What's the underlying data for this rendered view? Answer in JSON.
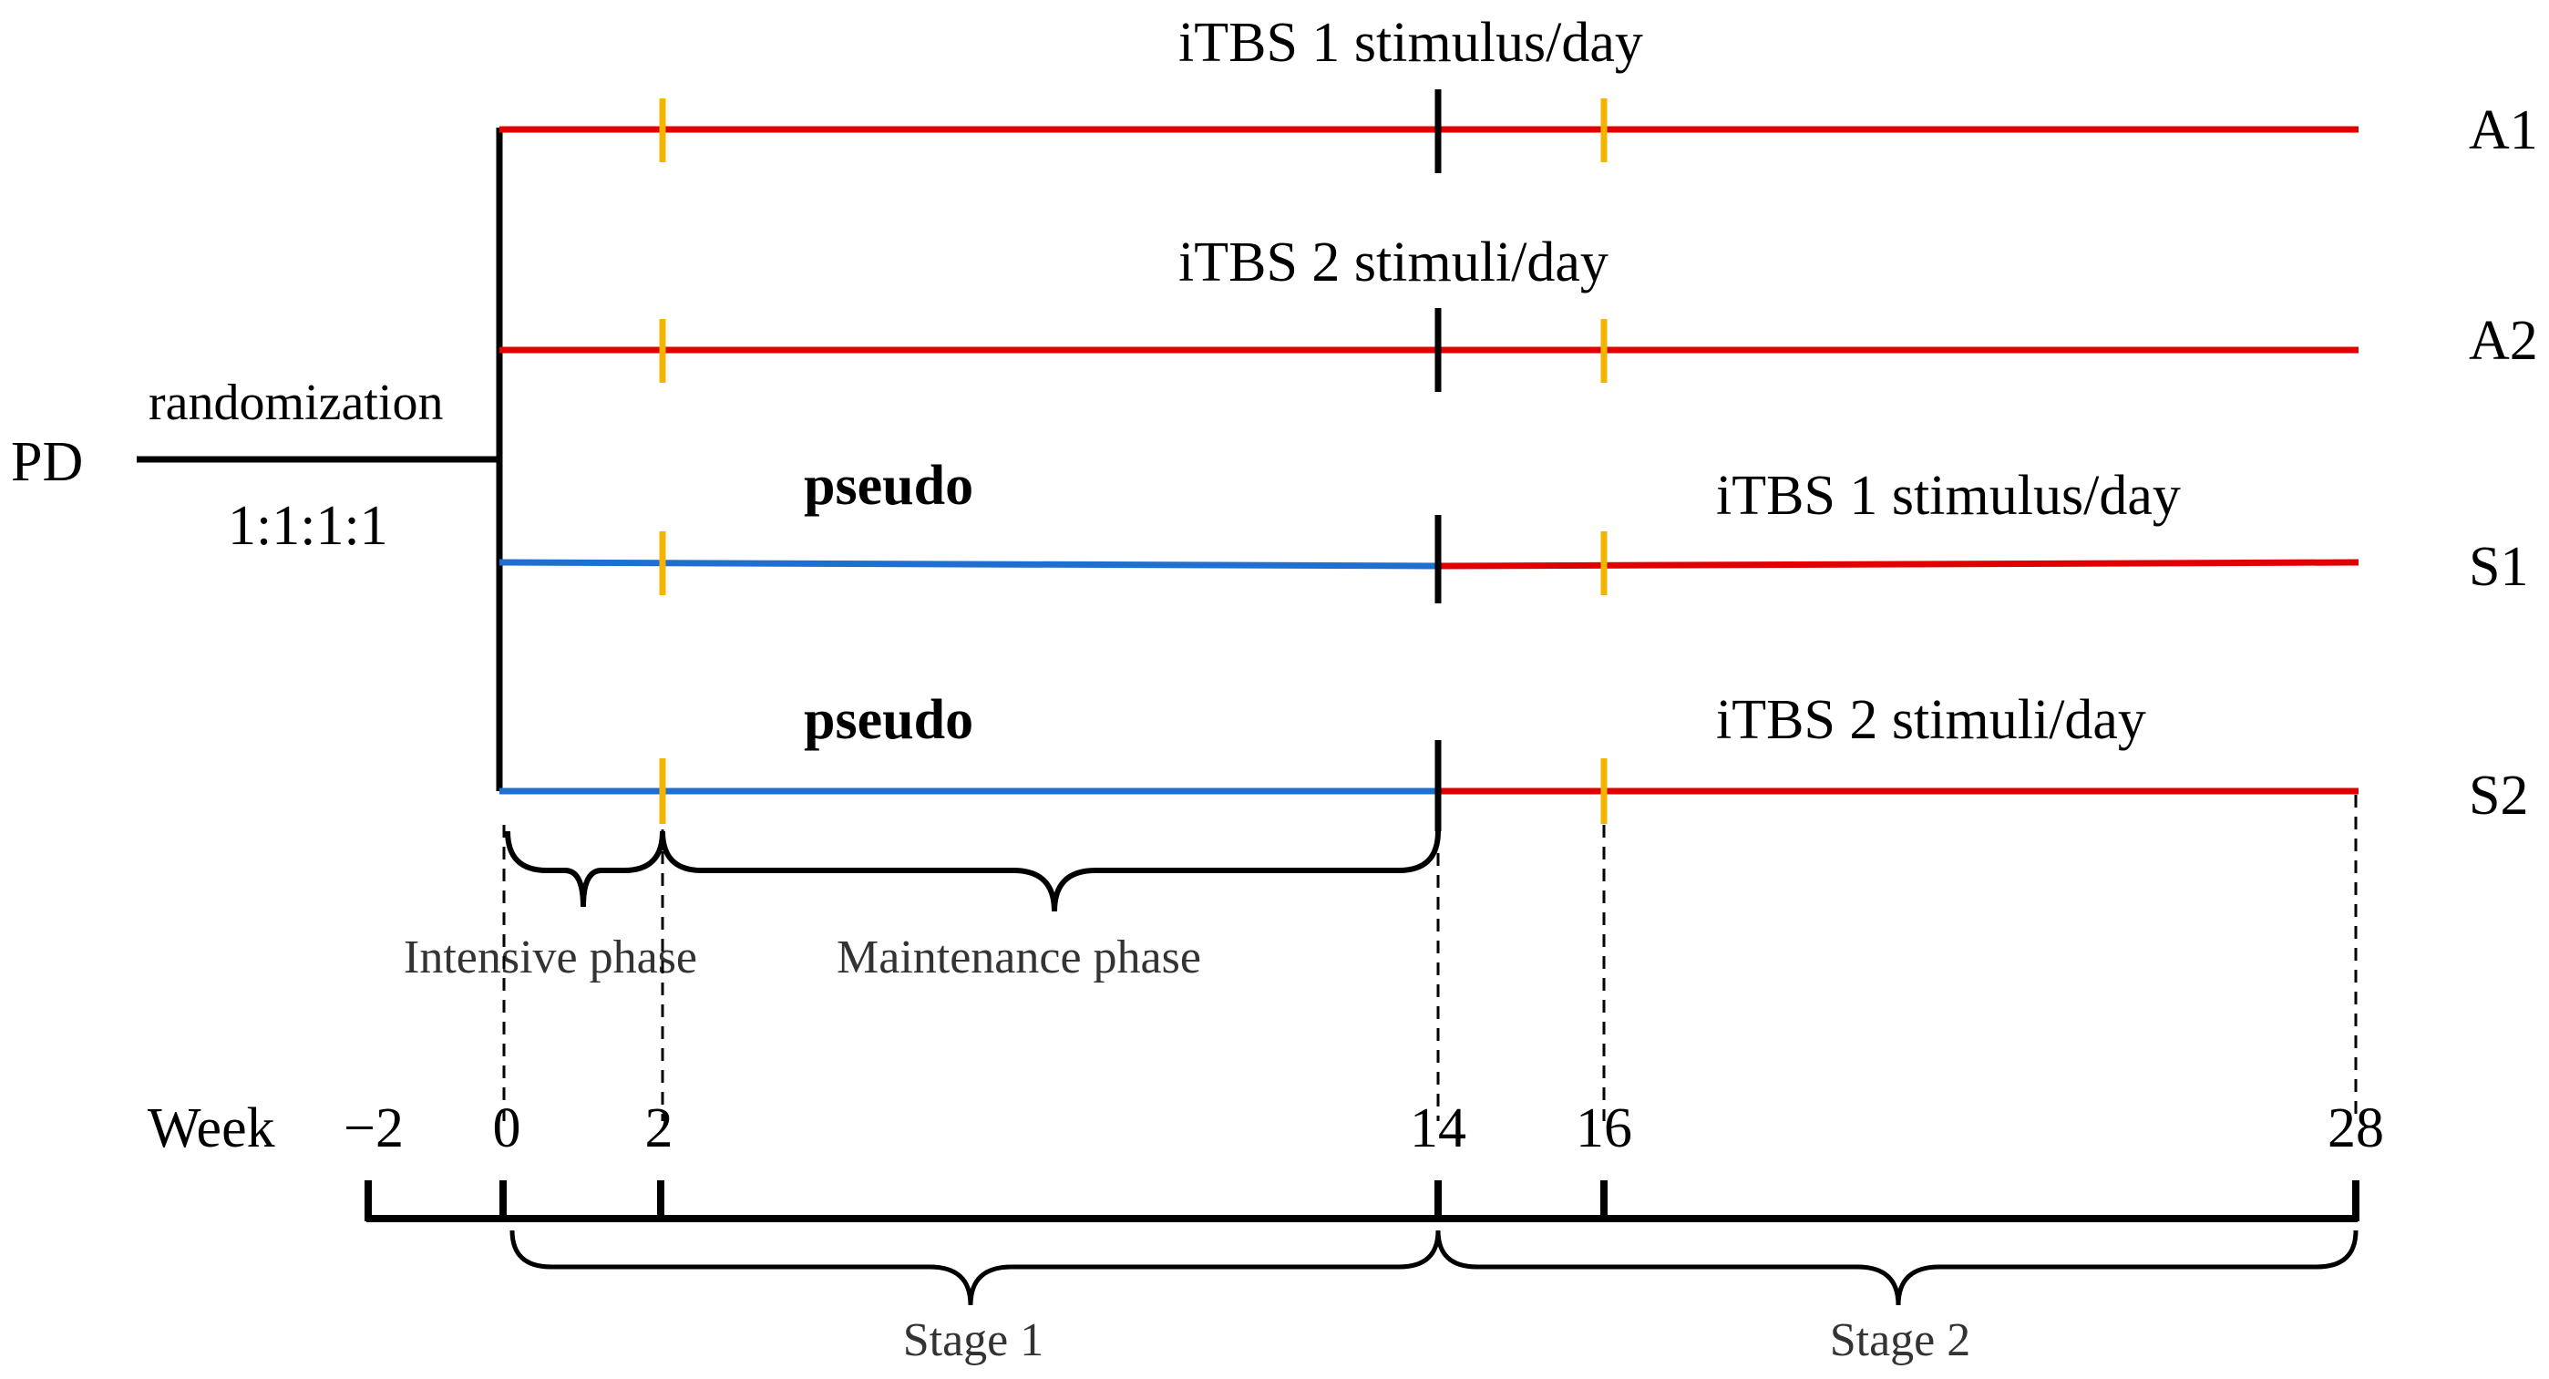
{
  "start_label": "PD",
  "randomization": {
    "label": "randomization",
    "ratio": "1:1:1:1"
  },
  "arms": [
    {
      "id": "A1",
      "label": "A1",
      "stage1_text": "iTBS 1 stimulus/day",
      "stage1_color": "#e00000",
      "stage2_text": "",
      "stage2_color": "#e00000"
    },
    {
      "id": "A2",
      "label": "A2",
      "stage1_text": "iTBS 2 stimuli/day",
      "stage1_color": "#e00000",
      "stage2_text": "",
      "stage2_color": "#e00000"
    },
    {
      "id": "S1",
      "label": "S1",
      "stage1_text": "pseudo",
      "stage1_color": "#1f6fd1",
      "stage2_text": "iTBS 1 stimulus/day",
      "stage2_color": "#e00000"
    },
    {
      "id": "S2",
      "label": "S2",
      "stage1_text": "pseudo",
      "stage1_color": "#1f6fd1",
      "stage2_text": "iTBS 2 stimuli/day",
      "stage2_color": "#e00000"
    }
  ],
  "phases": {
    "intensive": "Intensive phase",
    "maintenance": "Maintenance phase"
  },
  "timeline": {
    "label": "Week",
    "ticks": [
      "−2",
      "0",
      "2",
      "14",
      "16",
      "28"
    ]
  },
  "stages": {
    "stage1": "Stage 1",
    "stage2": "Stage 2"
  },
  "colors": {
    "active": "#e00000",
    "sham": "#1f6fd1",
    "marker": "#f5b400",
    "ink": "#000000"
  }
}
